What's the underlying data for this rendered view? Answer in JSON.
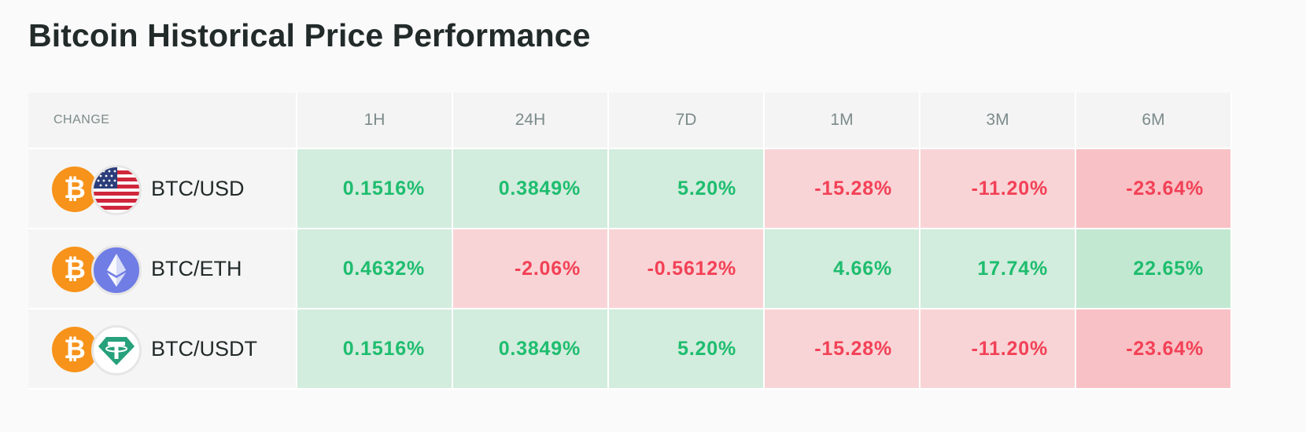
{
  "title": "Bitcoin Historical Price Performance",
  "table": {
    "header": [
      "CHANGE",
      "1H",
      "24H",
      "7D",
      "1M",
      "3M",
      "6M"
    ],
    "rows": [
      {
        "pair": "BTC/USD",
        "base_icon": "bitcoin-icon",
        "quote_icon": "us-flag-icon",
        "values": [
          "0.1516%",
          "0.3849%",
          "5.20%",
          "-15.28%",
          "-11.20%",
          "-23.64%"
        ]
      },
      {
        "pair": "BTC/ETH",
        "base_icon": "bitcoin-icon",
        "quote_icon": "ethereum-icon",
        "values": [
          "0.4632%",
          "-2.06%",
          "-0.5612%",
          "4.66%",
          "17.74%",
          "22.65%"
        ]
      },
      {
        "pair": "BTC/USDT",
        "base_icon": "bitcoin-icon",
        "quote_icon": "tether-icon",
        "values": [
          "0.1516%",
          "0.3849%",
          "5.20%",
          "-15.28%",
          "-11.20%",
          "-23.64%"
        ]
      }
    ]
  },
  "colors": {
    "positive_text": "#1ebd6e",
    "negative_text": "#f24156",
    "positive_bg": "#d2ecdd",
    "negative_bg": "#f9d4d6",
    "bitcoin": "#f7931a",
    "ethereum": "#6f7de4",
    "tether": "#26a17b"
  }
}
